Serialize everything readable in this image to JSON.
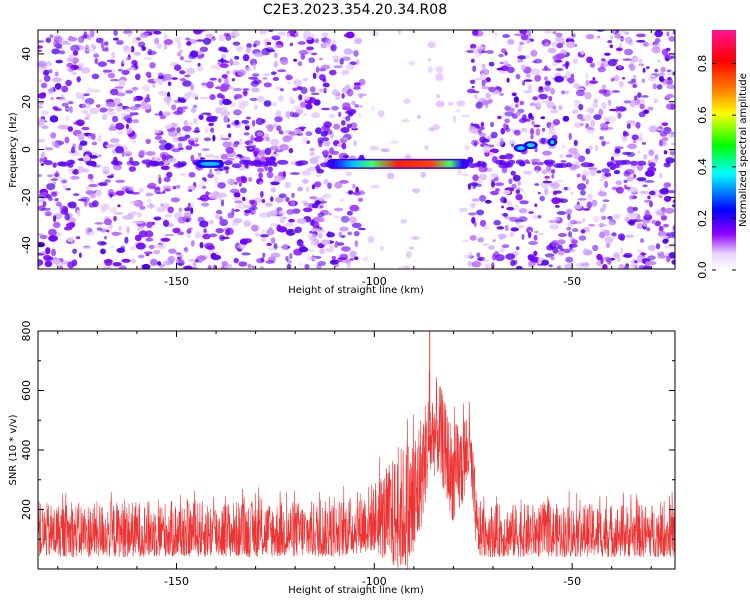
{
  "title": "C2E3.2023.354.20.34.R08",
  "chart_data": [
    {
      "type": "heatmap",
      "xlabel": "Height of straight line (km)",
      "ylabel": "Frequency (Hz)",
      "xlim": [
        -185,
        -24
      ],
      "ylim": [
        -50,
        50
      ],
      "xticks": [
        -150,
        -100,
        -50
      ],
      "yticks": [
        -40,
        -20,
        0,
        20,
        40
      ],
      "colorbar": {
        "label": "Normalized spectral amplitude",
        "range": [
          0,
          0.93
        ],
        "ticks": [
          0.0,
          0.2,
          0.4,
          0.6,
          0.8
        ],
        "tick_labels": [
          "0.0",
          "0.2",
          "0.4",
          "0.6",
          "0.8"
        ],
        "colormap": [
          "#ffffff",
          "#a000ff",
          "#0000ff",
          "#00ffff",
          "#00ff00",
          "#ffff00",
          "#ff8000",
          "#ff0000",
          "#ff1493"
        ]
      },
      "features": [
        {
          "x_range": [
            -145,
            -138
          ],
          "frequency": -6,
          "amplitude": 0.35
        },
        {
          "x_range": [
            -112,
            -76
          ],
          "frequency": -6,
          "amplitude": 0.85
        },
        {
          "x_range": [
            -64,
            -54
          ],
          "frequency": 1,
          "amplitude": 0.3
        }
      ],
      "background_noise": {
        "x_gap": [
          -103,
          -76
        ],
        "amplitude_range": [
          0.02,
          0.12
        ]
      }
    },
    {
      "type": "line",
      "xlabel": "Height of straight line (km)",
      "ylabel": "SNR (10 * v/v)",
      "xlim": [
        -185,
        -24
      ],
      "ylim": [
        0,
        800
      ],
      "xticks": [
        -150,
        -100,
        -50
      ],
      "yticks": [
        200,
        400,
        600,
        800
      ],
      "color": "#ee3333",
      "envelope": {
        "x": [
          -185,
          -160,
          -130,
          -110,
          -105,
          -100,
          -95,
          -90,
          -88,
          -86,
          -84,
          -82,
          -80,
          -78,
          -76,
          -74,
          -70,
          -60,
          -50,
          -40,
          -24
        ],
        "low": [
          40,
          40,
          40,
          40,
          50,
          60,
          0,
          0,
          150,
          300,
          320,
          250,
          150,
          200,
          300,
          40,
          40,
          40,
          40,
          40,
          40
        ],
        "high": [
          220,
          230,
          230,
          230,
          250,
          300,
          380,
          480,
          540,
          620,
          650,
          560,
          480,
          520,
          570,
          230,
          220,
          220,
          220,
          220,
          220
        ]
      },
      "peak": {
        "x": -86,
        "y": 800
      }
    }
  ]
}
